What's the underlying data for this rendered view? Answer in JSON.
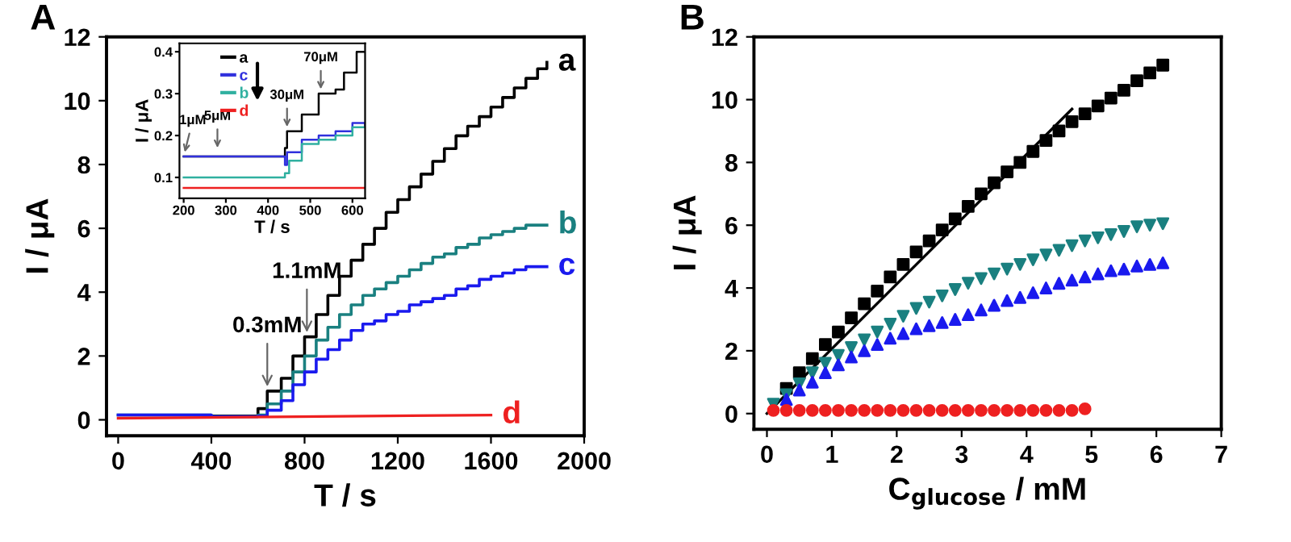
{
  "chart_data": [
    {
      "type": "line",
      "title": "A",
      "xlabel": "T / s",
      "ylabel": "I / μA",
      "xlim": [
        -50,
        2000
      ],
      "ylim": [
        -0.5,
        12
      ],
      "xticks": [
        0,
        400,
        800,
        1200,
        1600,
        2000
      ],
      "yticks": [
        0,
        2,
        4,
        6,
        8,
        10,
        12
      ],
      "legend": false,
      "series": [
        {
          "name": "a",
          "type": "step",
          "color": "#000000",
          "x": [
            400,
            600,
            640,
            700,
            750,
            800,
            850,
            900,
            950,
            1000,
            1050,
            1100,
            1150,
            1200,
            1250,
            1300,
            1350,
            1400,
            1450,
            1500,
            1550,
            1600,
            1650,
            1700,
            1750,
            1800,
            1840
          ],
          "values": [
            0.12,
            0.35,
            0.9,
            1.3,
            2.0,
            2.6,
            3.3,
            3.9,
            4.5,
            5.0,
            5.5,
            6.0,
            6.5,
            6.9,
            7.3,
            7.7,
            8.1,
            8.5,
            8.9,
            9.2,
            9.5,
            9.8,
            10.1,
            10.4,
            10.7,
            11.0,
            11.2
          ]
        },
        {
          "name": "b",
          "type": "step",
          "color": "#1a8080",
          "x": [
            0,
            400,
            600,
            640,
            700,
            750,
            800,
            850,
            900,
            950,
            1000,
            1050,
            1100,
            1150,
            1200,
            1250,
            1300,
            1350,
            1400,
            1450,
            1500,
            1550,
            1600,
            1650,
            1700,
            1750,
            1800,
            1840
          ],
          "values": [
            0.15,
            0.1,
            0.15,
            0.5,
            0.9,
            1.5,
            2.0,
            2.5,
            2.9,
            3.3,
            3.6,
            3.9,
            4.1,
            4.3,
            4.5,
            4.7,
            4.9,
            5.1,
            5.2,
            5.4,
            5.5,
            5.7,
            5.8,
            5.9,
            6.0,
            6.1,
            6.1,
            6.1
          ]
        },
        {
          "name": "c",
          "type": "step",
          "color": "#1a1aee",
          "x": [
            0,
            400,
            600,
            640,
            700,
            750,
            800,
            850,
            900,
            950,
            1000,
            1050,
            1100,
            1150,
            1200,
            1250,
            1300,
            1350,
            1400,
            1450,
            1500,
            1550,
            1600,
            1650,
            1700,
            1750,
            1800,
            1840
          ],
          "values": [
            0.15,
            0.1,
            0.12,
            0.3,
            0.6,
            1.1,
            1.5,
            1.9,
            2.2,
            2.5,
            2.8,
            3.0,
            3.1,
            3.3,
            3.4,
            3.6,
            3.7,
            3.8,
            3.9,
            4.1,
            4.2,
            4.4,
            4.5,
            4.6,
            4.7,
            4.8,
            4.8,
            4.8
          ]
        },
        {
          "name": "d",
          "type": "line",
          "color": "#ee2020",
          "x": [
            0,
            1600
          ],
          "values": [
            0.05,
            0.15
          ]
        }
      ],
      "annotations": [
        {
          "text": "0.3mM",
          "x": 640,
          "y": 0.9
        },
        {
          "text": "1.1mM",
          "x": 810,
          "y": 2.6
        }
      ]
    },
    {
      "type": "line",
      "xlabel": "T / s",
      "ylabel": "I / μA",
      "xlim": [
        190,
        630
      ],
      "ylim": [
        0.05,
        0.42
      ],
      "xticks": [
        200,
        300,
        400,
        500,
        600
      ],
      "yticks": [
        0.1,
        0.2,
        0.3,
        0.4
      ],
      "legend": "top",
      "series": [
        {
          "name": "a",
          "type": "step",
          "color": "#000000",
          "x": [
            200,
            440,
            445,
            480,
            520,
            560,
            580,
            610,
            630
          ],
          "values": [
            0.15,
            0.17,
            0.21,
            0.25,
            0.3,
            0.31,
            0.35,
            0.4,
            0.4
          ]
        },
        {
          "name": "c",
          "type": "step",
          "color": "#3030dd",
          "x": [
            200,
            440,
            445,
            480,
            520,
            560,
            600,
            630
          ],
          "values": [
            0.15,
            0.13,
            0.16,
            0.19,
            0.2,
            0.21,
            0.23,
            0.22
          ]
        },
        {
          "name": "b",
          "type": "step",
          "color": "#30b0a0",
          "x": [
            200,
            440,
            450,
            480,
            520,
            560,
            600,
            630
          ],
          "values": [
            0.1,
            0.11,
            0.14,
            0.18,
            0.19,
            0.2,
            0.22,
            0.22
          ]
        },
        {
          "name": "d",
          "type": "line",
          "color": "#ee2020",
          "x": [
            200,
            630
          ],
          "values": [
            0.075,
            0.075
          ]
        }
      ],
      "annotations": [
        {
          "text": "1μM",
          "x": 200,
          "y": 0.15
        },
        {
          "text": "5μM",
          "x": 280,
          "y": 0.16
        },
        {
          "text": "30μM",
          "x": 445,
          "y": 0.21
        },
        {
          "text": "70μM",
          "x": 525,
          "y": 0.3
        }
      ]
    },
    {
      "type": "scatter",
      "title": "B",
      "xlabel": "C$_{glucose}$ / mM",
      "ylabel": "I / μA",
      "xlim": [
        -0.2,
        7
      ],
      "ylim": [
        -0.5,
        12
      ],
      "xticks": [
        0,
        1,
        2,
        3,
        4,
        5,
        6,
        7
      ],
      "yticks": [
        0,
        2,
        4,
        6,
        8,
        10,
        12
      ],
      "legend": false,
      "series": [
        {
          "color": "#000000",
          "marker": "square",
          "x": [
            0.3,
            0.5,
            0.7,
            0.9,
            1.1,
            1.3,
            1.5,
            1.7,
            1.9,
            2.1,
            2.3,
            2.5,
            2.7,
            2.9,
            3.1,
            3.3,
            3.5,
            3.7,
            3.9,
            4.1,
            4.3,
            4.5,
            4.7,
            4.9,
            5.1,
            5.3,
            5.5,
            5.7,
            5.9,
            6.1
          ],
          "values": [
            0.8,
            1.3,
            1.75,
            2.2,
            2.6,
            3.05,
            3.5,
            3.9,
            4.35,
            4.75,
            5.15,
            5.5,
            5.85,
            6.2,
            6.6,
            7.0,
            7.35,
            7.7,
            8.0,
            8.35,
            8.7,
            9.0,
            9.3,
            9.55,
            9.8,
            10.05,
            10.3,
            10.6,
            10.85,
            11.1
          ]
        },
        {
          "color": "#1a8080",
          "marker": "triangle_down",
          "x": [
            0.1,
            0.3,
            0.5,
            0.7,
            0.9,
            1.1,
            1.3,
            1.5,
            1.7,
            1.9,
            2.1,
            2.3,
            2.5,
            2.7,
            2.9,
            3.1,
            3.3,
            3.5,
            3.7,
            3.9,
            4.1,
            4.3,
            4.5,
            4.7,
            4.9,
            5.1,
            5.3,
            5.5,
            5.7,
            5.9,
            6.1
          ],
          "values": [
            0.3,
            0.6,
            0.95,
            1.3,
            1.6,
            1.85,
            2.1,
            2.35,
            2.6,
            2.85,
            3.1,
            3.35,
            3.55,
            3.75,
            3.95,
            4.15,
            4.3,
            4.45,
            4.6,
            4.75,
            4.9,
            5.05,
            5.2,
            5.35,
            5.5,
            5.6,
            5.7,
            5.8,
            5.95,
            6.0,
            6.05
          ]
        },
        {
          "color": "#1a1aee",
          "marker": "triangle",
          "x": [
            0.3,
            0.5,
            0.7,
            0.9,
            1.1,
            1.3,
            1.5,
            1.7,
            1.9,
            2.1,
            2.3,
            2.5,
            2.7,
            2.9,
            3.1,
            3.3,
            3.5,
            3.7,
            3.9,
            4.1,
            4.3,
            4.5,
            4.7,
            4.9,
            5.1,
            5.3,
            5.5,
            5.7,
            5.9,
            6.1
          ],
          "values": [
            0.45,
            0.75,
            1.0,
            1.3,
            1.55,
            1.8,
            2.0,
            2.2,
            2.4,
            2.55,
            2.7,
            2.8,
            2.9,
            3.0,
            3.15,
            3.3,
            3.45,
            3.6,
            3.7,
            3.85,
            4.0,
            4.15,
            4.25,
            4.35,
            4.45,
            4.55,
            4.6,
            4.7,
            4.75,
            4.8
          ]
        },
        {
          "color": "#ee2020",
          "marker": "circle",
          "x": [
            0.1,
            0.3,
            0.5,
            0.7,
            0.9,
            1.1,
            1.3,
            1.5,
            1.7,
            1.9,
            2.1,
            2.3,
            2.5,
            2.7,
            2.9,
            3.1,
            3.3,
            3.5,
            3.7,
            3.9,
            4.1,
            4.3,
            4.5,
            4.7,
            4.9
          ],
          "values": [
            0.1,
            0.1,
            0.1,
            0.1,
            0.1,
            0.1,
            0.1,
            0.1,
            0.1,
            0.1,
            0.1,
            0.1,
            0.1,
            0.1,
            0.1,
            0.1,
            0.1,
            0.1,
            0.1,
            0.1,
            0.1,
            0.1,
            0.1,
            0.1,
            0.15
          ]
        },
        {
          "type": "line",
          "color": "#000000",
          "x": [
            0,
            4.7
          ],
          "values": [
            0.0,
            9.7
          ]
        }
      ]
    }
  ]
}
